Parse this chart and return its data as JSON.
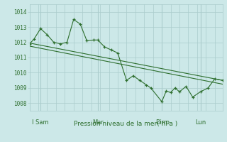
{
  "xlabel": "Pression niveau de la mer( hPa )",
  "background_color": "#cce8e8",
  "grid_color": "#aacccc",
  "line_color": "#2d6e2d",
  "ylim": [
    1007.5,
    1014.5
  ],
  "xlim": [
    0,
    175
  ],
  "x_tick_labels": [
    "I Sam",
    "Mar",
    "Dim",
    "Lun"
  ],
  "x_tick_positions": [
    10,
    62,
    120,
    155
  ],
  "yticks": [
    1008,
    1009,
    1010,
    1011,
    1012,
    1013,
    1014
  ],
  "vlines": [
    10,
    62,
    120,
    155
  ],
  "series1": {
    "x": [
      0,
      4,
      10,
      16,
      22,
      28,
      34,
      40,
      46,
      52,
      58,
      62,
      68,
      74,
      80,
      88,
      94,
      100,
      106,
      110,
      120,
      124,
      128,
      132,
      136,
      142,
      148,
      155,
      162,
      168,
      175
    ],
    "y": [
      1011.9,
      1012.2,
      1012.9,
      1012.5,
      1012.0,
      1011.9,
      1012.0,
      1013.5,
      1013.2,
      1012.1,
      1012.15,
      1012.15,
      1011.7,
      1011.5,
      1011.3,
      1009.5,
      1009.8,
      1009.5,
      1009.2,
      1009.0,
      1008.1,
      1008.8,
      1008.7,
      1009.0,
      1008.75,
      1009.1,
      1008.4,
      1008.75,
      1009.0,
      1009.6,
      1009.5
    ]
  },
  "series2": {
    "x": [
      0,
      175
    ],
    "y": [
      1011.95,
      1009.5
    ]
  },
  "series3": {
    "x": [
      0,
      175
    ],
    "y": [
      1011.75,
      1009.25
    ]
  }
}
